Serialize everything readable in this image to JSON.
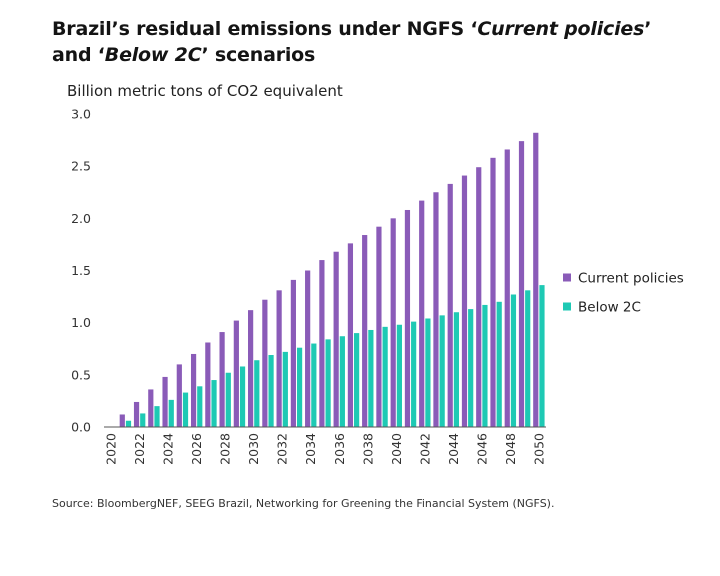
{
  "title": {
    "part1": "Brazil’s residual emissions under NGFS ‘",
    "italic1": "Current policies",
    "part2": "’ and ‘",
    "italic2": "Below 2C",
    "part3": "’ scenarios"
  },
  "source": "Source: BloombergNEF, SEEG Brazil, Networking for Greening the Financial System (NGFS).",
  "colors": {
    "current_policies": "#8a5bb8",
    "below_2c": "#1ec9b4",
    "axis": "#555555"
  },
  "chart_data": {
    "type": "bar",
    "ylabel": "Billion metric tons of CO2 equivalent",
    "ylim": [
      0,
      3.0
    ],
    "yticks": [
      "0.0",
      "0.5",
      "1.0",
      "1.5",
      "2.0",
      "2.5",
      "3.0"
    ],
    "grid": false,
    "legend_position": "right",
    "categories": [
      "2020",
      "2021",
      "2022",
      "2023",
      "2024",
      "2025",
      "2026",
      "2027",
      "2028",
      "2029",
      "2030",
      "2031",
      "2032",
      "2033",
      "2034",
      "2035",
      "2036",
      "2037",
      "2038",
      "2039",
      "2040",
      "2041",
      "2042",
      "2043",
      "2044",
      "2045",
      "2046",
      "2047",
      "2048",
      "2049",
      "2050"
    ],
    "xtick_labels": [
      "2020",
      "2022",
      "2024",
      "2026",
      "2028",
      "2030",
      "2032",
      "2034",
      "2036",
      "2038",
      "2040",
      "2042",
      "2044",
      "2046",
      "2048",
      "2050"
    ],
    "series": [
      {
        "name": "Current policies",
        "values": [
          0.0,
          0.12,
          0.24,
          0.36,
          0.48,
          0.6,
          0.7,
          0.81,
          0.91,
          1.02,
          1.12,
          1.22,
          1.31,
          1.41,
          1.5,
          1.6,
          1.68,
          1.76,
          1.84,
          1.92,
          2.0,
          2.08,
          2.17,
          2.25,
          2.33,
          2.41,
          2.49,
          2.58,
          2.66,
          2.74,
          2.82
        ]
      },
      {
        "name": "Below 2C",
        "values": [
          0.0,
          0.06,
          0.13,
          0.2,
          0.26,
          0.33,
          0.39,
          0.45,
          0.52,
          0.58,
          0.64,
          0.69,
          0.72,
          0.76,
          0.8,
          0.84,
          0.87,
          0.9,
          0.93,
          0.96,
          0.98,
          1.01,
          1.04,
          1.07,
          1.1,
          1.13,
          1.17,
          1.2,
          1.27,
          1.31,
          1.36
        ]
      }
    ]
  }
}
